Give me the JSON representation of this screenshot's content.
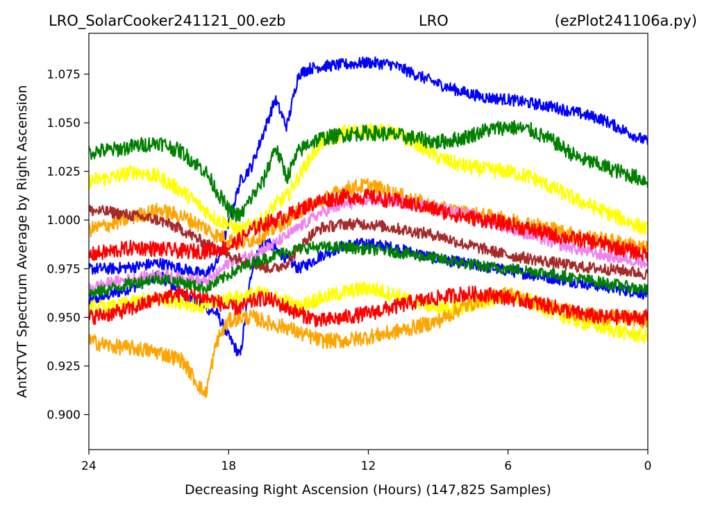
{
  "chart_data": {
    "type": "line",
    "title": {
      "left": "LRO_SolarCooker241121_00.ezb",
      "center": "LRO",
      "right": "(ezPlot241106a.py)"
    },
    "xlabel": "Decreasing Right Ascension (Hours) (147,825 Samples)",
    "ylabel": "AntXTVT Spectrum Average by Right Ascension",
    "xlim": [
      24,
      0
    ],
    "ylim": [
      0.882,
      1.096
    ],
    "x_ticks": [
      24,
      18,
      12,
      6,
      0
    ],
    "x_tick_labels": [
      "24",
      "18",
      "12",
      "6",
      "0"
    ],
    "y_ticks": [
      0.9,
      0.925,
      0.95,
      0.975,
      1.0,
      1.025,
      1.05,
      1.075
    ],
    "y_tick_labels": [
      "0.900",
      "0.925",
      "0.950",
      "0.975",
      "1.000",
      "1.025",
      "1.050",
      "1.075"
    ],
    "grid": false,
    "legend": "none",
    "x": [
      24,
      23,
      22,
      21,
      20,
      19,
      18.5,
      18,
      17.5,
      17,
      16.5,
      16,
      15.5,
      15,
      14.5,
      14,
      13,
      12,
      11,
      10,
      9,
      8,
      7,
      6,
      5,
      4,
      3,
      2,
      1,
      0
    ],
    "series": [
      {
        "color": "#0000ff",
        "noise": 0.003,
        "values": [
          0.958,
          0.962,
          0.966,
          0.972,
          0.962,
          0.955,
          0.952,
          0.94,
          0.93,
          0.975,
          0.99,
          0.985,
          0.98,
          0.975,
          0.978,
          0.982,
          0.987,
          0.988,
          0.986,
          0.983,
          0.98,
          0.978,
          0.976,
          0.974,
          0.972,
          0.97,
          0.968,
          0.966,
          0.964,
          0.962
        ]
      },
      {
        "color": "#0000ff",
        "noise": 0.003,
        "values": [
          0.975,
          0.975,
          0.976,
          0.978,
          0.975,
          0.972,
          0.978,
          0.998,
          1.02,
          1.028,
          1.045,
          1.062,
          1.048,
          1.075,
          1.078,
          1.079,
          1.08,
          1.081,
          1.08,
          1.075,
          1.07,
          1.066,
          1.063,
          1.062,
          1.06,
          1.058,
          1.055,
          1.052,
          1.046,
          1.04
        ]
      },
      {
        "color": "#ffff00",
        "noise": 0.004,
        "values": [
          1.02,
          1.022,
          1.025,
          1.022,
          1.015,
          1.005,
          1.0,
          0.998,
          0.994,
          0.998,
          1.0,
          1.008,
          1.012,
          1.022,
          1.032,
          1.04,
          1.045,
          1.046,
          1.045,
          1.04,
          1.032,
          1.028,
          1.026,
          1.025,
          1.022,
          1.016,
          1.01,
          1.005,
          1.0,
          0.995
        ]
      },
      {
        "color": "#ffff00",
        "noise": 0.004,
        "values": [
          0.955,
          0.955,
          0.958,
          0.96,
          0.958,
          0.955,
          0.958,
          0.96,
          0.96,
          0.962,
          0.962,
          0.96,
          0.958,
          0.955,
          0.958,
          0.96,
          0.963,
          0.965,
          0.962,
          0.958,
          0.955,
          0.955,
          0.958,
          0.962,
          0.958,
          0.952,
          0.948,
          0.945,
          0.942,
          0.94
        ]
      },
      {
        "color": "#ffa500",
        "noise": 0.004,
        "values": [
          0.995,
          0.998,
          1.002,
          1.005,
          1.002,
          0.996,
          0.992,
          0.99,
          0.988,
          0.99,
          0.992,
          0.996,
          1.0,
          1.004,
          1.008,
          1.01,
          1.016,
          1.018,
          1.014,
          1.01,
          1.006,
          1.004,
          1.002,
          1.0,
          0.998,
          0.995,
          0.992,
          0.99,
          0.988,
          0.985
        ]
      },
      {
        "color": "#ffa500",
        "noise": 0.004,
        "values": [
          0.938,
          0.935,
          0.934,
          0.932,
          0.928,
          0.91,
          0.938,
          0.948,
          0.95,
          0.95,
          0.948,
          0.946,
          0.945,
          0.942,
          0.94,
          0.938,
          0.938,
          0.94,
          0.942,
          0.945,
          0.948,
          0.955,
          0.96,
          0.962,
          0.958,
          0.955,
          0.952,
          0.95,
          0.95,
          0.948
        ]
      },
      {
        "color": "#ee82ee",
        "noise": 0.003,
        "values": [
          0.965,
          0.968,
          0.97,
          0.972,
          0.97,
          0.968,
          0.972,
          0.978,
          0.98,
          0.982,
          0.985,
          0.988,
          0.992,
          0.996,
          1.0,
          1.004,
          1.008,
          1.01,
          1.01,
          1.008,
          1.006,
          1.004,
          1.0,
          0.996,
          0.992,
          0.988,
          0.985,
          0.982,
          0.98,
          0.978
        ]
      },
      {
        "color": "#a52a2a",
        "noise": 0.003,
        "values": [
          1.005,
          1.004,
          1.002,
          1.0,
          0.995,
          0.988,
          0.985,
          0.982,
          0.98,
          0.978,
          0.976,
          0.975,
          0.978,
          0.985,
          0.992,
          0.996,
          0.998,
          0.998,
          0.996,
          0.994,
          0.992,
          0.988,
          0.985,
          0.982,
          0.98,
          0.978,
          0.976,
          0.975,
          0.974,
          0.972
        ]
      },
      {
        "color": "#ff0000",
        "noise": 0.004,
        "values": [
          0.95,
          0.952,
          0.955,
          0.96,
          0.962,
          0.96,
          0.958,
          0.955,
          0.955,
          0.958,
          0.96,
          0.958,
          0.955,
          0.952,
          0.95,
          0.948,
          0.95,
          0.952,
          0.955,
          0.958,
          0.96,
          0.962,
          0.962,
          0.96,
          0.958,
          0.955,
          0.952,
          0.95,
          0.95,
          0.95
        ]
      },
      {
        "color": "#ff0000",
        "noise": 0.004,
        "values": [
          0.982,
          0.984,
          0.986,
          0.985,
          0.984,
          0.984,
          0.985,
          0.986,
          0.99,
          0.995,
          0.998,
          1.0,
          1.002,
          1.005,
          1.008,
          1.01,
          1.012,
          1.012,
          1.01,
          1.008,
          1.005,
          1.002,
          1.0,
          0.998,
          0.995,
          0.992,
          0.99,
          0.988,
          0.985,
          0.982
        ]
      },
      {
        "color": "#008000",
        "noise": 0.004,
        "values": [
          1.035,
          1.036,
          1.038,
          1.04,
          1.035,
          1.025,
          1.015,
          1.005,
          1.002,
          1.012,
          1.02,
          1.038,
          1.022,
          1.035,
          1.04,
          1.042,
          1.044,
          1.045,
          1.044,
          1.042,
          1.04,
          1.042,
          1.046,
          1.048,
          1.046,
          1.04,
          1.032,
          1.028,
          1.024,
          1.02
        ]
      },
      {
        "color": "#008000",
        "noise": 0.003,
        "values": [
          0.962,
          0.965,
          0.968,
          0.97,
          0.968,
          0.965,
          0.968,
          0.972,
          0.975,
          0.978,
          0.98,
          0.982,
          0.984,
          0.985,
          0.986,
          0.986,
          0.986,
          0.985,
          0.984,
          0.982,
          0.98,
          0.978,
          0.976,
          0.975,
          0.974,
          0.972,
          0.97,
          0.968,
          0.966,
          0.964
        ]
      }
    ]
  }
}
